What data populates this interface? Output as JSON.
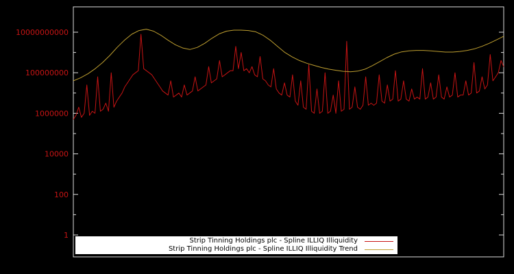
{
  "chart_data": {
    "type": "line",
    "title": "",
    "x_axis": {
      "label": "",
      "tick_labels_visible": false
    },
    "y_axis": {
      "scale": "log10",
      "range_log10": [
        0,
        11
      ],
      "tick_log10": [
        0,
        2,
        4,
        6,
        8,
        10
      ],
      "tick_labels": [
        "1",
        "100",
        "10000",
        "1000000",
        "100000000",
        "10000000000"
      ],
      "minor_tick_log10": [
        1,
        3,
        5,
        7,
        9
      ],
      "label_color": "#c81414"
    },
    "plot": {
      "background": "#000000",
      "border_color": "#e0e0e0"
    },
    "legend": {
      "position": "bottom-center",
      "background": "#ffffff",
      "text_color": "#000000"
    },
    "series": [
      {
        "name": "Strip Tinning Holdings plc - Spline ILLIQ Illiquidity",
        "color": "#c81414",
        "style": "noisy-spiky",
        "y_log10": [
          5.7,
          5.9,
          6.3,
          5.8,
          6.0,
          7.4,
          5.9,
          6.1,
          6.0,
          7.8,
          6.1,
          6.2,
          6.5,
          6.1,
          8.0,
          6.3,
          6.6,
          6.8,
          7.0,
          7.3,
          7.5,
          7.7,
          7.9,
          8.0,
          8.1,
          9.9,
          8.2,
          8.1,
          8.0,
          7.9,
          7.7,
          7.5,
          7.3,
          7.1,
          7.0,
          6.9,
          7.6,
          6.8,
          6.9,
          7.0,
          6.8,
          7.4,
          6.9,
          7.0,
          7.1,
          7.8,
          7.1,
          7.2,
          7.3,
          7.4,
          8.3,
          7.5,
          7.6,
          7.7,
          8.6,
          7.8,
          7.9,
          8.0,
          8.1,
          8.1,
          9.3,
          8.2,
          9.0,
          8.1,
          8.2,
          8.0,
          8.3,
          7.9,
          7.8,
          8.8,
          7.7,
          7.6,
          7.4,
          7.3,
          8.2,
          7.2,
          7.0,
          6.9,
          7.5,
          6.9,
          6.8,
          7.9,
          6.6,
          6.4,
          7.6,
          6.3,
          6.2,
          8.4,
          6.1,
          6.0,
          7.2,
          6.0,
          6.1,
          8.0,
          6.0,
          6.1,
          6.9,
          6.0,
          7.6,
          6.1,
          6.2,
          9.55,
          6.2,
          6.3,
          7.3,
          6.3,
          6.2,
          6.4,
          7.8,
          6.4,
          6.5,
          6.4,
          6.5,
          7.9,
          6.6,
          6.5,
          7.4,
          6.6,
          6.7,
          8.1,
          6.6,
          6.7,
          7.6,
          6.7,
          6.6,
          7.2,
          6.7,
          6.8,
          6.7,
          8.2,
          6.7,
          6.8,
          7.5,
          6.7,
          6.8,
          7.9,
          6.8,
          6.7,
          7.3,
          6.8,
          6.9,
          8.0,
          6.8,
          6.9,
          6.9,
          7.6,
          6.9,
          7.0,
          8.5,
          7.0,
          7.1,
          7.8,
          7.2,
          7.4,
          8.9,
          7.6,
          7.8,
          8.0,
          8.6,
          8.3
        ]
      },
      {
        "name": "Strip Tinning Holdings plc - Spline ILLIQ Illiquidity Trend",
        "color": "#c0a030",
        "style": "smooth",
        "y_log10": [
          7.6,
          7.75,
          7.95,
          8.2,
          8.5,
          8.85,
          9.25,
          9.6,
          9.9,
          10.08,
          10.15,
          10.05,
          9.85,
          9.6,
          9.38,
          9.22,
          9.15,
          9.25,
          9.45,
          9.7,
          9.92,
          10.05,
          10.1,
          10.1,
          10.08,
          10.02,
          9.85,
          9.6,
          9.3,
          9.0,
          8.78,
          8.6,
          8.47,
          8.36,
          8.26,
          8.18,
          8.12,
          8.07,
          8.05,
          8.08,
          8.18,
          8.35,
          8.55,
          8.75,
          8.92,
          9.03,
          9.08,
          9.1,
          9.1,
          9.08,
          9.05,
          9.02,
          9.02,
          9.05,
          9.1,
          9.18,
          9.3,
          9.45,
          9.62,
          9.8
        ]
      }
    ]
  }
}
